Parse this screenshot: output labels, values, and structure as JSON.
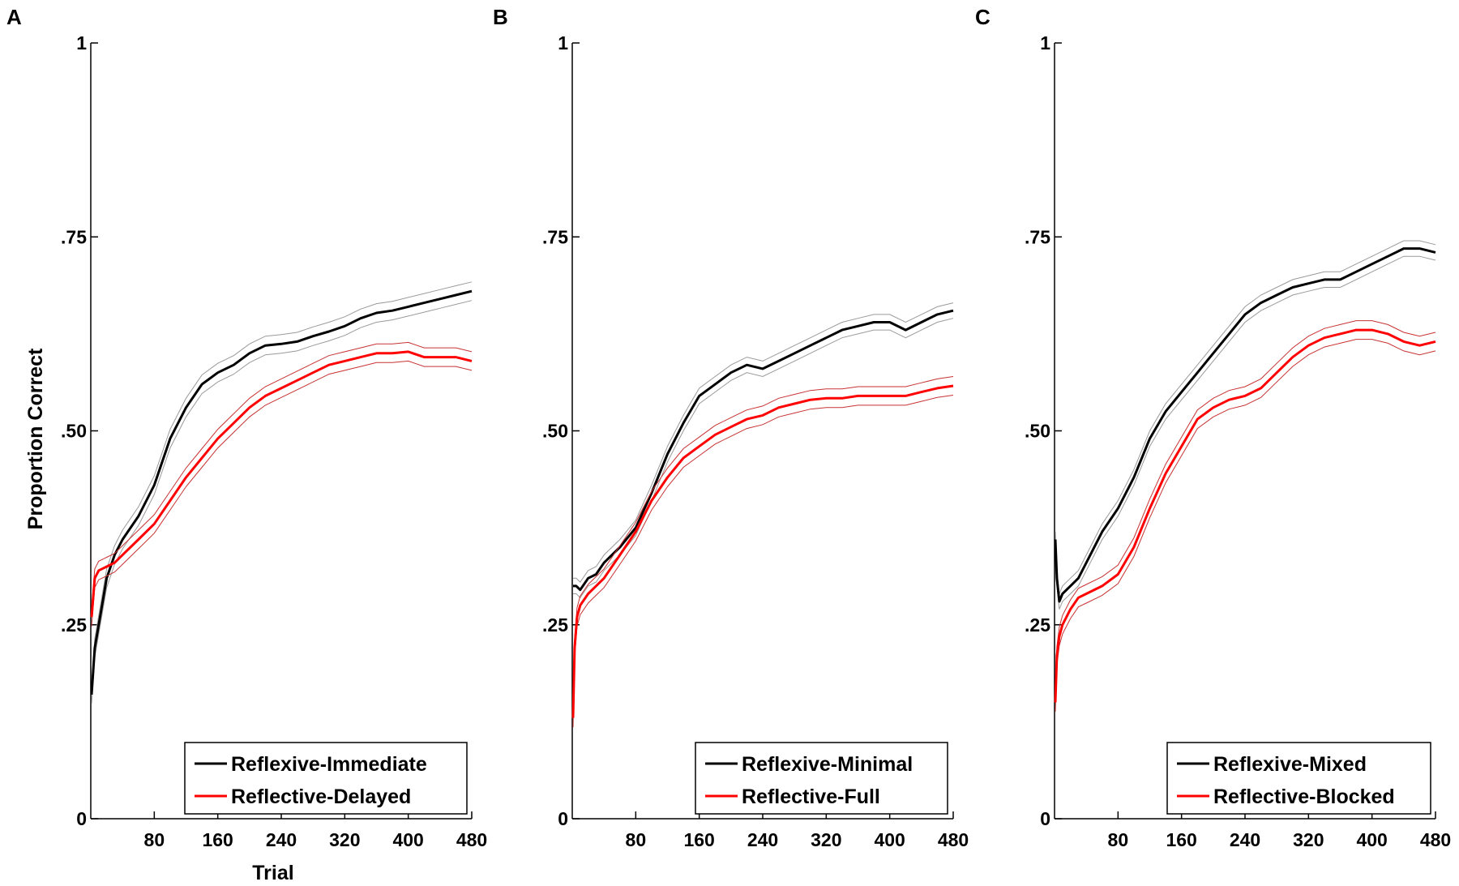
{
  "chart_data": [
    {
      "panel_label": "A",
      "type": "line",
      "xlabel": "Trial",
      "ylabel": "Proportion Correct",
      "xlim": [
        0,
        480
      ],
      "ylim": [
        0,
        1
      ],
      "xticks": [
        80,
        160,
        240,
        320,
        400,
        480
      ],
      "xtick_labels": [
        "80",
        "160",
        "240",
        "320",
        "400",
        "480"
      ],
      "yticks": [
        0,
        0.25,
        0.5,
        0.75,
        1
      ],
      "ytick_labels": [
        "0",
        ".25",
        ".50",
        ".75",
        "1"
      ],
      "legend_position": "bottom-right",
      "series": [
        {
          "name": "Reflexive-Immediate",
          "color": "#000000",
          "band": 0.012,
          "x": [
            1,
            5,
            10,
            20,
            30,
            40,
            60,
            80,
            100,
            120,
            140,
            160,
            180,
            200,
            220,
            240,
            260,
            280,
            300,
            320,
            340,
            360,
            380,
            400,
            420,
            440,
            460,
            480
          ],
          "y": [
            0.16,
            0.22,
            0.25,
            0.31,
            0.34,
            0.36,
            0.39,
            0.43,
            0.49,
            0.53,
            0.56,
            0.575,
            0.585,
            0.6,
            0.61,
            0.612,
            0.615,
            0.622,
            0.628,
            0.635,
            0.645,
            0.652,
            0.655,
            0.66,
            0.665,
            0.67,
            0.675,
            0.68
          ]
        },
        {
          "name": "Reflective-Delayed",
          "color": "#ff0000",
          "band": 0.012,
          "x": [
            1,
            5,
            10,
            20,
            30,
            40,
            60,
            80,
            100,
            120,
            140,
            160,
            180,
            200,
            220,
            240,
            260,
            280,
            300,
            320,
            340,
            360,
            380,
            400,
            420,
            440,
            460,
            480
          ],
          "y": [
            0.26,
            0.31,
            0.32,
            0.325,
            0.33,
            0.34,
            0.36,
            0.38,
            0.41,
            0.44,
            0.465,
            0.49,
            0.51,
            0.53,
            0.545,
            0.555,
            0.565,
            0.575,
            0.585,
            0.59,
            0.595,
            0.6,
            0.6,
            0.602,
            0.595,
            0.595,
            0.595,
            0.59
          ]
        }
      ]
    },
    {
      "panel_label": "B",
      "type": "line",
      "xlabel": "",
      "ylabel": "",
      "xlim": [
        0,
        480
      ],
      "ylim": [
        0,
        1
      ],
      "xticks": [
        80,
        160,
        240,
        320,
        400,
        480
      ],
      "xtick_labels": [
        "80",
        "160",
        "240",
        "320",
        "400",
        "480"
      ],
      "yticks": [
        0,
        0.25,
        0.5,
        0.75,
        1
      ],
      "ytick_labels": [
        "0",
        ".25",
        ".50",
        ".75",
        "1"
      ],
      "legend_position": "bottom-right",
      "series": [
        {
          "name": "Reflexive-Minimal",
          "color": "#000000",
          "band": 0.01,
          "x": [
            1,
            5,
            10,
            20,
            30,
            40,
            60,
            80,
            100,
            120,
            140,
            160,
            180,
            200,
            220,
            240,
            260,
            280,
            300,
            320,
            340,
            360,
            380,
            400,
            420,
            440,
            460,
            480
          ],
          "y": [
            0.3,
            0.3,
            0.295,
            0.31,
            0.315,
            0.33,
            0.35,
            0.375,
            0.42,
            0.47,
            0.51,
            0.545,
            0.56,
            0.575,
            0.585,
            0.58,
            0.59,
            0.6,
            0.61,
            0.62,
            0.63,
            0.635,
            0.64,
            0.64,
            0.63,
            0.64,
            0.65,
            0.655
          ]
        },
        {
          "name": "Reflective-Full",
          "color": "#ff0000",
          "band": 0.012,
          "x": [
            1,
            3,
            6,
            10,
            20,
            30,
            40,
            60,
            80,
            100,
            120,
            140,
            160,
            180,
            200,
            220,
            240,
            260,
            280,
            300,
            320,
            340,
            360,
            380,
            400,
            420,
            440,
            460,
            480
          ],
          "y": [
            0.13,
            0.22,
            0.26,
            0.275,
            0.29,
            0.3,
            0.31,
            0.34,
            0.37,
            0.41,
            0.44,
            0.465,
            0.48,
            0.495,
            0.505,
            0.515,
            0.52,
            0.53,
            0.535,
            0.54,
            0.542,
            0.542,
            0.545,
            0.545,
            0.545,
            0.545,
            0.55,
            0.555,
            0.558
          ]
        }
      ]
    },
    {
      "panel_label": "C",
      "type": "line",
      "xlabel": "",
      "ylabel": "",
      "xlim": [
        0,
        480
      ],
      "ylim": [
        0,
        1
      ],
      "xticks": [
        80,
        160,
        240,
        320,
        400,
        480
      ],
      "xtick_labels": [
        "80",
        "160",
        "240",
        "320",
        "400",
        "480"
      ],
      "yticks": [
        0,
        0.25,
        0.5,
        0.75,
        1
      ],
      "ytick_labels": [
        "0",
        ".25",
        ".50",
        ".75",
        "1"
      ],
      "legend_position": "bottom-right",
      "series": [
        {
          "name": "Reflexive-Mixed",
          "color": "#000000",
          "band": 0.01,
          "x": [
            1,
            3,
            6,
            10,
            20,
            30,
            40,
            60,
            80,
            100,
            120,
            140,
            160,
            180,
            200,
            220,
            240,
            260,
            280,
            300,
            320,
            340,
            360,
            380,
            400,
            420,
            440,
            460,
            480
          ],
          "y": [
            0.36,
            0.31,
            0.28,
            0.29,
            0.3,
            0.31,
            0.33,
            0.37,
            0.4,
            0.44,
            0.49,
            0.525,
            0.55,
            0.575,
            0.6,
            0.625,
            0.65,
            0.665,
            0.675,
            0.685,
            0.69,
            0.695,
            0.695,
            0.705,
            0.715,
            0.725,
            0.735,
            0.735,
            0.73
          ]
        },
        {
          "name": "Reflective-Blocked",
          "color": "#ff0000",
          "band": 0.012,
          "x": [
            1,
            3,
            6,
            10,
            20,
            30,
            40,
            60,
            80,
            100,
            120,
            140,
            160,
            180,
            200,
            220,
            240,
            260,
            280,
            300,
            320,
            340,
            360,
            380,
            400,
            420,
            440,
            460,
            480
          ],
          "y": [
            0.15,
            0.21,
            0.235,
            0.25,
            0.27,
            0.285,
            0.29,
            0.3,
            0.315,
            0.35,
            0.4,
            0.445,
            0.48,
            0.515,
            0.53,
            0.54,
            0.545,
            0.555,
            0.575,
            0.595,
            0.61,
            0.62,
            0.625,
            0.63,
            0.63,
            0.625,
            0.615,
            0.61,
            0.615
          ]
        }
      ]
    }
  ]
}
